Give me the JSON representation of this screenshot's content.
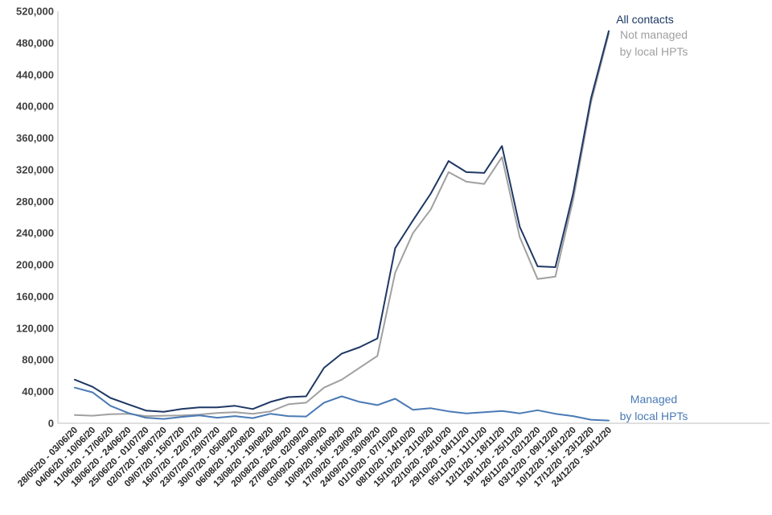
{
  "chart_data": {
    "type": "line",
    "title": "",
    "xlabel": "",
    "ylabel": "",
    "ylim": [
      0,
      520000
    ],
    "yticks": [
      0,
      40000,
      80000,
      120000,
      160000,
      200000,
      240000,
      280000,
      320000,
      360000,
      400000,
      440000,
      480000,
      520000
    ],
    "ytick_labels": [
      "0",
      "40,000",
      "80,000",
      "120,000",
      "160,000",
      "200,000",
      "240,000",
      "280,000",
      "320,000",
      "360,000",
      "400,000",
      "440,000",
      "480,000",
      "520,000"
    ],
    "grid": false,
    "categories": [
      "28/05/20 - 03/06/20",
      "04/06/20 - 10/06/20",
      "11/06/20 - 17/06/20",
      "18/06/20 - 24/06/20",
      "25/06/20 - 01/07/20",
      "02/07/20 - 08/07/20",
      "09/07/20 - 15/07/20",
      "16/07/20 - 22/07/20",
      "23/07/20 - 29/07/20",
      "30/07/20 - 05/08/20",
      "06/08/20 - 12/08/20",
      "13/08/20 - 19/08/20",
      "20/08/20 - 26/08/20",
      "27/08/20 - 02/09/20",
      "03/09/20 - 09/09/20",
      "10/09/20 - 16/09/20",
      "17/09/20 - 23/09/20",
      "24/09/20 - 30/09/20",
      "01/10/20 - 07/10/20",
      "08/10/20 - 14/10/20",
      "15/10/20 - 21/10/20",
      "22/10/20 - 28/10/20",
      "29/10/20 - 04/11/20",
      "05/11/20 - 11/11/20",
      "12/11/20 - 18/11/20",
      "19/11/20 - 25/11/20",
      "26/11/20 - 02/12/20",
      "03/12/20 - 09/12/20",
      "10/12/20 - 16/12/20",
      "17/12/20 - 23/12/20",
      "24/12/20 - 30/12/20"
    ],
    "series": [
      {
        "name": "All contacts",
        "color": "#1f3864",
        "label_lines": [
          "All contacts"
        ],
        "values": [
          55000,
          46000,
          32000,
          24000,
          16000,
          14500,
          18000,
          20000,
          20000,
          22000,
          18000,
          27000,
          33000,
          34000,
          70000,
          88000,
          96000,
          107000,
          221000,
          256000,
          290000,
          331000,
          317000,
          316000,
          350000,
          248000,
          198000,
          197000,
          290000,
          410000,
          495000
        ]
      },
      {
        "name": "Not managed by local HPTs",
        "color": "#a0a0a0",
        "label_lines": [
          "Not managed",
          "by local HPTs"
        ],
        "values": [
          10500,
          9500,
          11500,
          12000,
          9000,
          9500,
          10000,
          11000,
          13000,
          14000,
          12000,
          15000,
          24000,
          26000,
          45000,
          55000,
          70000,
          85000,
          190000,
          240000,
          270000,
          317000,
          305000,
          302000,
          336000,
          235000,
          182000,
          185000,
          282000,
          405000,
          492000
        ]
      },
      {
        "name": "Managed by local HPTs",
        "color": "#4a7ab5",
        "label_lines": [
          "Managed",
          "by local HPTs"
        ],
        "values": [
          45000,
          39000,
          22000,
          13000,
          7000,
          5500,
          8000,
          10000,
          7000,
          9000,
          6500,
          12000,
          9000,
          8500,
          26000,
          34000,
          27000,
          23000,
          31000,
          17000,
          19000,
          15000,
          12500,
          14000,
          15500,
          12500,
          16500,
          12000,
          9000,
          4500,
          3500
        ]
      }
    ]
  }
}
